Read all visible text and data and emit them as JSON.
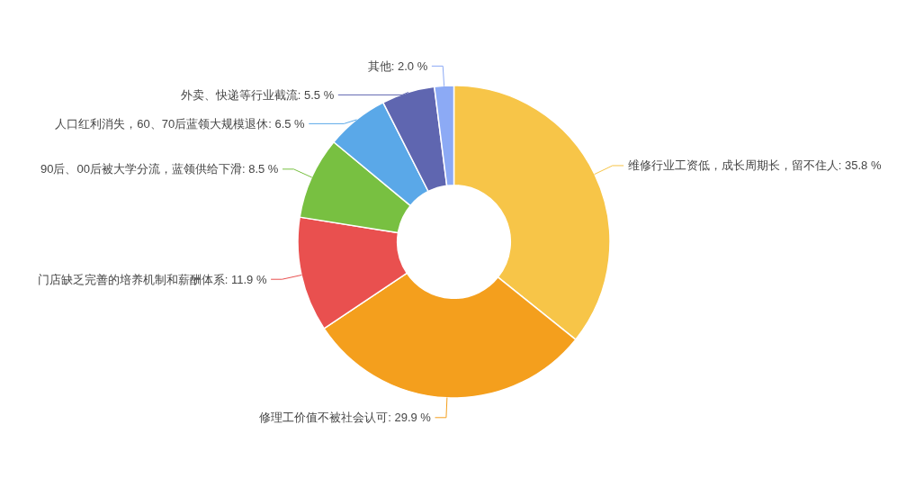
{
  "chart_data": {
    "type": "donut",
    "categories": [
      "维修行业工资低，成长周期长，留不住人",
      "修理工价值不被社会认可",
      "门店缺乏完善的培养机制和薪酬体系",
      "90后、00后被大学分流，蓝领供给下滑",
      "人口红利消失，60、70后蓝领大规模退休",
      "外卖、快递等行业截流",
      "其他"
    ],
    "values": [
      35.8,
      29.9,
      11.9,
      8.5,
      6.5,
      5.5,
      2.0
    ],
    "value_labels": [
      "35.8 %",
      "29.9 %",
      "11.9 %",
      "8.5 %",
      "6.5 %",
      "5.5 %",
      "2.0 %"
    ],
    "colors": [
      "#f7c548",
      "#f49f1d",
      "#e9504f",
      "#78c041",
      "#5aa8e8",
      "#5f66b0",
      "#8caaf5"
    ]
  }
}
